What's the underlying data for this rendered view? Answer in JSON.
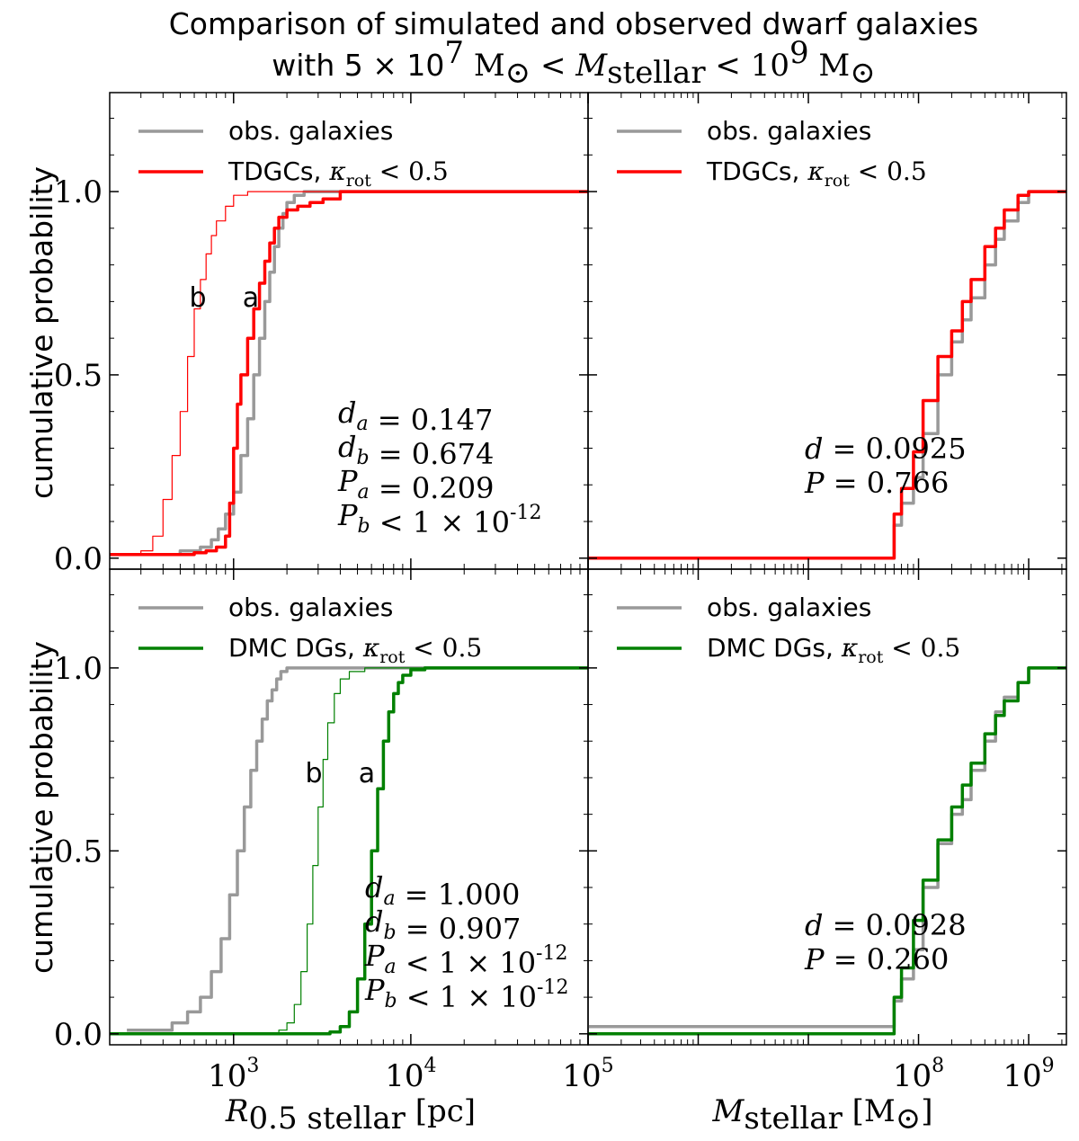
{
  "title_line1": "Comparison of simulated and observed dwarf galaxies",
  "title_line2_prefix": "with 5 × 10",
  "title_line2_exp1": "7",
  "title_line2_mid": " M",
  "title_line2_rest": " < M",
  "title_line2_sub": "stellar",
  "title_line2_end": " < 10",
  "title_line2_exp2": "9",
  "title_line2_end2": " M",
  "sun_symbol": "⊙",
  "ylabel": "cumulative probability",
  "yticks": [
    "0.0",
    "0.5",
    "1.0"
  ],
  "xlabel_left_var": "R",
  "xlabel_left_sub": "0.5 stellar",
  "xlabel_left_unit": " [pc]",
  "xlabel_right_var": "M",
  "xlabel_right_sub": "stellar",
  "xlabel_right_unit": " [M",
  "xlabel_right_unit_end": "]",
  "xticks_left": [
    {
      "base": "10",
      "exp": "3"
    },
    {
      "base": "10",
      "exp": "4"
    },
    {
      "base": "10",
      "exp": "5"
    }
  ],
  "xticks_right": [
    {
      "base": "10",
      "exp": "8"
    },
    {
      "base": "10",
      "exp": "9"
    }
  ],
  "colors": {
    "obs": "#999999",
    "tdgc": "#ff0000",
    "dmc": "#008000"
  },
  "chart_data": [
    {
      "type": "line",
      "panel": "top-left",
      "xscale": "log",
      "xlim": [
        200,
        100000
      ],
      "ylim": [
        -0.03,
        1.27
      ],
      "legend": [
        "obs. galaxies",
        "TDGCs, κ_rot < 0.5"
      ],
      "legend_placement": "top-left",
      "curve_labels": [
        "b",
        "a"
      ],
      "series": [
        {
          "name": "obs. galaxies",
          "x": [
            200,
            400,
            500,
            650,
            750,
            820,
            900,
            1000,
            1100,
            1200,
            1300,
            1400,
            1500,
            1600,
            1700,
            1800,
            1900,
            2000,
            2200,
            2500,
            3000,
            100000
          ],
          "y": [
            0.01,
            0.01,
            0.02,
            0.03,
            0.05,
            0.08,
            0.12,
            0.18,
            0.28,
            0.38,
            0.5,
            0.6,
            0.7,
            0.78,
            0.85,
            0.9,
            0.94,
            0.97,
            0.99,
            1.0,
            1.0,
            1.0
          ]
        },
        {
          "name": "TDGCs a",
          "x": [
            200,
            500,
            600,
            700,
            800,
            900,
            950,
            1000,
            1050,
            1100,
            1200,
            1300,
            1400,
            1500,
            1600,
            1700,
            1800,
            2000,
            2300,
            2700,
            3200,
            4000,
            100000
          ],
          "y": [
            0.01,
            0.01,
            0.015,
            0.02,
            0.03,
            0.06,
            0.15,
            0.3,
            0.42,
            0.5,
            0.6,
            0.68,
            0.75,
            0.81,
            0.86,
            0.9,
            0.93,
            0.95,
            0.96,
            0.97,
            0.98,
            1.0,
            1.0
          ]
        },
        {
          "name": "TDGCs b",
          "x": [
            200,
            250,
            300,
            350,
            400,
            450,
            500,
            550,
            600,
            650,
            700,
            750,
            800,
            900,
            1000,
            1200,
            1500,
            100000
          ],
          "y": [
            0.01,
            0.01,
            0.02,
            0.06,
            0.16,
            0.28,
            0.4,
            0.55,
            0.68,
            0.76,
            0.83,
            0.88,
            0.92,
            0.96,
            0.99,
            1.0,
            1.0,
            1.0
          ]
        }
      ],
      "annotations": [
        "d_a = 0.147",
        "d_b = 0.674",
        "P_a = 0.209",
        "P_b < 1 × 10^-12"
      ]
    },
    {
      "type": "line",
      "panel": "top-right",
      "xscale": "log",
      "xlim": [
        100000,
        2200000000
      ],
      "ylim": [
        -0.03,
        1.27
      ],
      "legend": [
        "obs. galaxies",
        "TDGCs, κ_rot < 0.5"
      ],
      "legend_placement": "top-left",
      "series": [
        {
          "name": "obs. galaxies",
          "x": [
            100000,
            50000000,
            60000000,
            70000000,
            90000000,
            110000000,
            150000000,
            200000000,
            250000000,
            300000000,
            400000000,
            500000000,
            600000000,
            800000000,
            1000000000,
            2200000000
          ],
          "y": [
            0.0,
            0.0,
            0.09,
            0.15,
            0.22,
            0.34,
            0.5,
            0.59,
            0.65,
            0.71,
            0.8,
            0.87,
            0.92,
            0.97,
            1.0,
            1.0
          ]
        },
        {
          "name": "TDGCs",
          "x": [
            100000,
            50000000,
            60000000,
            70000000,
            90000000,
            110000000,
            150000000,
            200000000,
            250000000,
            300000000,
            400000000,
            500000000,
            600000000,
            800000000,
            1000000000,
            2200000000
          ],
          "y": [
            0.0,
            0.0,
            0.12,
            0.19,
            0.29,
            0.43,
            0.55,
            0.62,
            0.7,
            0.76,
            0.85,
            0.9,
            0.95,
            0.99,
            1.0,
            1.0
          ]
        }
      ],
      "annotations": [
        "d = 0.0925",
        "P = 0.766"
      ]
    },
    {
      "type": "line",
      "panel": "bottom-left",
      "xscale": "log",
      "xlim": [
        200,
        100000
      ],
      "ylim": [
        -0.03,
        1.27
      ],
      "legend": [
        "obs. galaxies",
        "DMC DGs, κ_rot < 0.5"
      ],
      "legend_placement": "top-left",
      "curve_labels": [
        "b",
        "a"
      ],
      "series": [
        {
          "name": "obs. galaxies",
          "x": [
            250,
            350,
            450,
            550,
            650,
            750,
            850,
            950,
            1050,
            1150,
            1250,
            1350,
            1450,
            1550,
            1650,
            1750,
            1850,
            2000,
            2200,
            100000
          ],
          "y": [
            0.01,
            0.01,
            0.03,
            0.06,
            0.1,
            0.17,
            0.26,
            0.38,
            0.5,
            0.62,
            0.72,
            0.8,
            0.86,
            0.91,
            0.94,
            0.97,
            0.99,
            1.0,
            1.0,
            1.0
          ]
        },
        {
          "name": "DMC DGs a",
          "x": [
            200,
            3000,
            3500,
            4000,
            4500,
            5000,
            5500,
            6000,
            6500,
            7000,
            7500,
            8000,
            8500,
            9000,
            10000,
            12000,
            100000
          ],
          "y": [
            0.0,
            0.0,
            0.005,
            0.02,
            0.06,
            0.15,
            0.3,
            0.5,
            0.67,
            0.8,
            0.88,
            0.93,
            0.96,
            0.98,
            0.995,
            1.0,
            1.0
          ]
        },
        {
          "name": "DMC DGs b",
          "x": [
            200,
            1500,
            1800,
            2000,
            2200,
            2400,
            2600,
            2800,
            3000,
            3200,
            3400,
            3700,
            4000,
            4500,
            5500,
            100000
          ],
          "y": [
            0.0,
            0.0,
            0.01,
            0.03,
            0.08,
            0.17,
            0.3,
            0.46,
            0.62,
            0.75,
            0.85,
            0.93,
            0.97,
            0.99,
            1.0,
            1.0
          ]
        }
      ],
      "annotations": [
        "d_a = 1.000",
        "d_b = 0.907",
        "P_a < 1 × 10^-12",
        "P_b < 1 × 10^-12"
      ]
    },
    {
      "type": "line",
      "panel": "bottom-right",
      "xscale": "log",
      "xlim": [
        100000,
        2200000000
      ],
      "ylim": [
        -0.03,
        1.27
      ],
      "legend": [
        "obs. galaxies",
        "DMC DGs, κ_rot < 0.5"
      ],
      "legend_placement": "top-left",
      "series": [
        {
          "name": "obs. galaxies",
          "x": [
            100000,
            50000000,
            60000000,
            70000000,
            90000000,
            110000000,
            150000000,
            200000000,
            250000000,
            300000000,
            400000000,
            500000000,
            600000000,
            800000000,
            1000000000,
            2200000000
          ],
          "y": [
            0.02,
            0.02,
            0.09,
            0.15,
            0.23,
            0.4,
            0.52,
            0.6,
            0.64,
            0.72,
            0.8,
            0.88,
            0.92,
            0.96,
            1.0,
            1.0
          ]
        },
        {
          "name": "DMC DGs",
          "x": [
            100000,
            50000000,
            60000000,
            70000000,
            90000000,
            110000000,
            150000000,
            200000000,
            250000000,
            300000000,
            400000000,
            500000000,
            600000000,
            800000000,
            1000000000,
            2200000000
          ],
          "y": [
            0.0,
            0.0,
            0.1,
            0.18,
            0.31,
            0.42,
            0.53,
            0.62,
            0.68,
            0.74,
            0.82,
            0.87,
            0.91,
            0.96,
            1.0,
            1.0
          ]
        }
      ],
      "annotations": [
        "d = 0.0928",
        "P = 0.260"
      ]
    }
  ]
}
